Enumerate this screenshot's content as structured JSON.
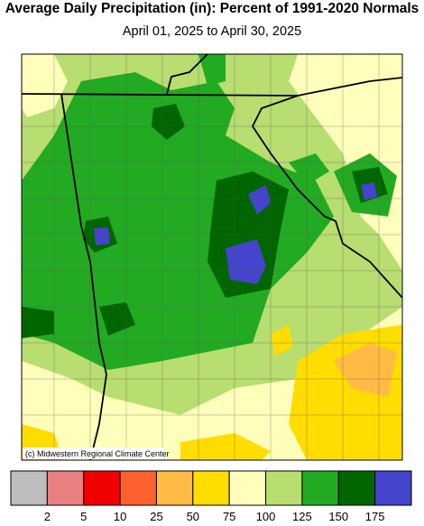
{
  "header": {
    "title": "Average Daily Precipitation (in): Percent of 1991-2020 Normals",
    "subtitle": "April 01, 2025 to April 30, 2025"
  },
  "map": {
    "credit": "(c) Midwestern Regional Climate Center"
  },
  "legend": {
    "colors": [
      "#bdbdbd",
      "#e88080",
      "#f00000",
      "#ff6030",
      "#ffbb44",
      "#ffdd00",
      "#ffffbb",
      "#b8dd70",
      "#22aa22",
      "#006600",
      "#4444cc"
    ],
    "labels": [
      2,
      5,
      10,
      25,
      50,
      75,
      100,
      125,
      150,
      175
    ]
  }
}
